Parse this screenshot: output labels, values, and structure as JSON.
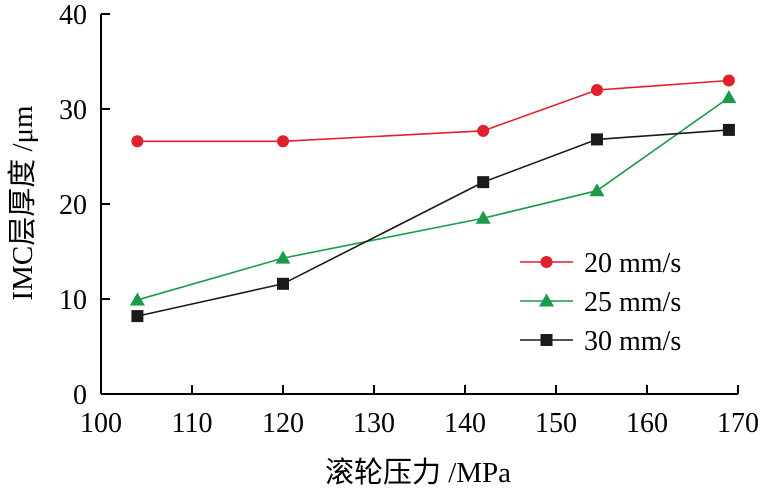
{
  "chart_data": {
    "type": "line",
    "title": "",
    "xlabel": "滚轮压力 /MPa",
    "ylabel": "IMC层厚度 /μm",
    "xlim": [
      100,
      170
    ],
    "ylim": [
      0,
      40
    ],
    "xticks": [
      100,
      110,
      120,
      130,
      140,
      150,
      160,
      170
    ],
    "yticks": [
      0,
      10,
      20,
      30,
      40
    ],
    "grid": false,
    "legend_position": "right-middle",
    "series": [
      {
        "name": "20 mm/s",
        "color": "#e0202a",
        "marker": "circle",
        "x": [
          104,
          120,
          142,
          154.5,
          169
        ],
        "y": [
          26.6,
          26.6,
          27.7,
          32.0,
          33.0
        ]
      },
      {
        "name": "25 mm/s",
        "color": "#1a9a4a",
        "marker": "triangle",
        "x": [
          104,
          120,
          142,
          154.5,
          169
        ],
        "y": [
          9.9,
          14.3,
          18.5,
          21.4,
          31.2
        ]
      },
      {
        "name": "30 mm/s",
        "color": "#1a1a1a",
        "marker": "square",
        "x": [
          104,
          120,
          142,
          154.5,
          169
        ],
        "y": [
          8.2,
          11.6,
          22.3,
          26.8,
          27.8
        ]
      }
    ]
  }
}
